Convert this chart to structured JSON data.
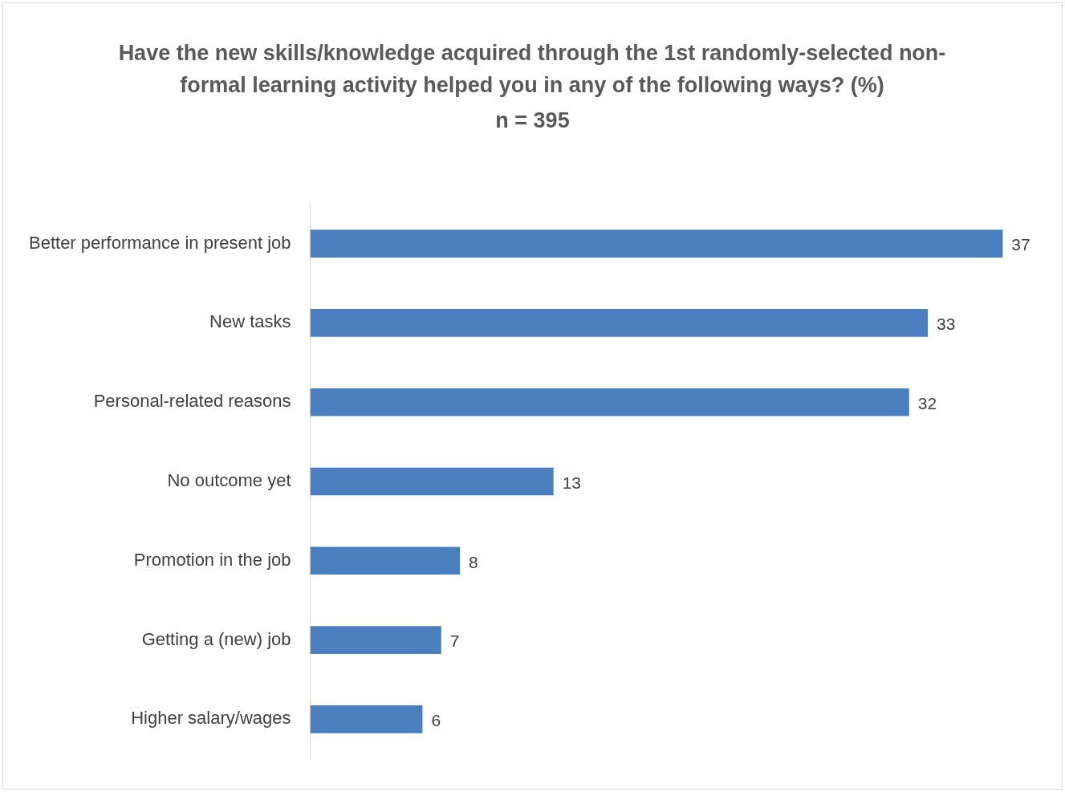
{
  "chart_data": {
    "type": "bar",
    "orientation": "horizontal",
    "title": "Have the new skills/knowledge acquired through the 1st randomly-selected non-formal learning activity helped you in any of the following ways? (%)",
    "subtitle": "n = 395",
    "categories": [
      "Better performance in present job",
      "New tasks",
      "Personal-related reasons",
      "No outcome yet",
      "Promotion in the job",
      "Getting a (new) job",
      "Higher salary/wages"
    ],
    "values": [
      37,
      33,
      32,
      13,
      8,
      7,
      6
    ],
    "color": "#4a7ebf",
    "data_labels": true
  }
}
